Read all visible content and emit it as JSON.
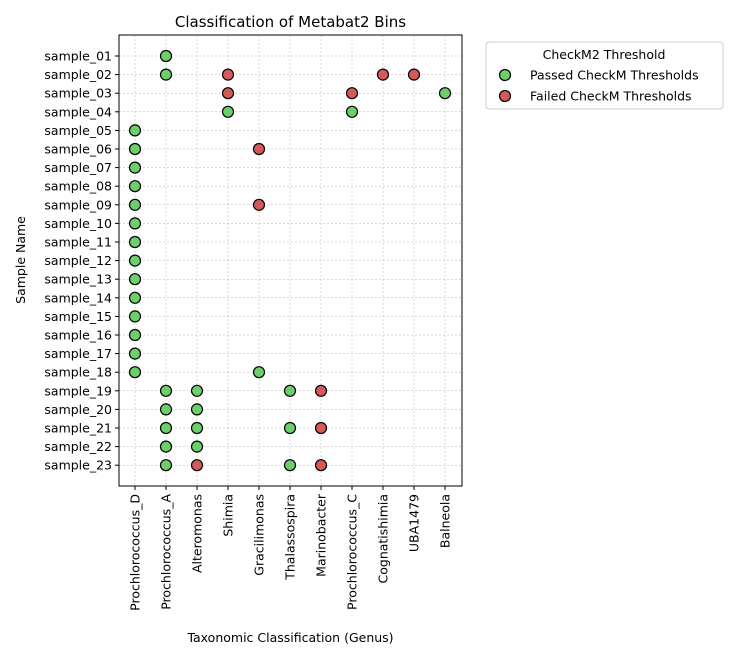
{
  "chart_data": {
    "type": "scatter",
    "title": "Classification of Metabat2 Bins",
    "xlabel": "Taxonomic Classification (Genus)",
    "ylabel": "Sample Name",
    "grid": true,
    "legend_placement": "outside upper right",
    "x_categories": [
      "Prochlorococcus_D",
      "Prochlorococcus_A",
      "Alteromonas",
      "Shimia",
      "Gracilimonas",
      "Thalassospira",
      "Marinobacter",
      "Prochlorococcus_C",
      "Cognatishimia",
      "UBA1479",
      "Balneola"
    ],
    "y_categories": [
      "sample_01",
      "sample_02",
      "sample_03",
      "sample_04",
      "sample_05",
      "sample_06",
      "sample_07",
      "sample_08",
      "sample_09",
      "sample_10",
      "sample_11",
      "sample_12",
      "sample_13",
      "sample_14",
      "sample_15",
      "sample_16",
      "sample_17",
      "sample_18",
      "sample_19",
      "sample_20",
      "sample_21",
      "sample_22",
      "sample_23"
    ],
    "legend": {
      "title": "CheckM2 Threshold",
      "items": [
        {
          "key": "passed",
          "label": "Passed CheckM Thresholds",
          "color": "#6ccf6c"
        },
        {
          "key": "failed",
          "label": "Failed CheckM Thresholds",
          "color": "#d45a5a"
        }
      ]
    },
    "points": [
      {
        "sample": "sample_01",
        "genus": "Prochlorococcus_A",
        "status": "passed"
      },
      {
        "sample": "sample_02",
        "genus": "Prochlorococcus_A",
        "status": "passed"
      },
      {
        "sample": "sample_02",
        "genus": "Shimia",
        "status": "failed"
      },
      {
        "sample": "sample_02",
        "genus": "Cognatishimia",
        "status": "failed"
      },
      {
        "sample": "sample_02",
        "genus": "UBA1479",
        "status": "failed"
      },
      {
        "sample": "sample_03",
        "genus": "Shimia",
        "status": "failed"
      },
      {
        "sample": "sample_03",
        "genus": "Prochlorococcus_C",
        "status": "failed"
      },
      {
        "sample": "sample_03",
        "genus": "Balneola",
        "status": "passed"
      },
      {
        "sample": "sample_04",
        "genus": "Shimia",
        "status": "passed"
      },
      {
        "sample": "sample_04",
        "genus": "Prochlorococcus_C",
        "status": "passed"
      },
      {
        "sample": "sample_05",
        "genus": "Prochlorococcus_D",
        "status": "passed"
      },
      {
        "sample": "sample_06",
        "genus": "Prochlorococcus_D",
        "status": "passed"
      },
      {
        "sample": "sample_06",
        "genus": "Gracilimonas",
        "status": "failed"
      },
      {
        "sample": "sample_07",
        "genus": "Prochlorococcus_D",
        "status": "passed"
      },
      {
        "sample": "sample_08",
        "genus": "Prochlorococcus_D",
        "status": "passed"
      },
      {
        "sample": "sample_09",
        "genus": "Prochlorococcus_D",
        "status": "passed"
      },
      {
        "sample": "sample_09",
        "genus": "Gracilimonas",
        "status": "failed"
      },
      {
        "sample": "sample_10",
        "genus": "Prochlorococcus_D",
        "status": "passed"
      },
      {
        "sample": "sample_11",
        "genus": "Prochlorococcus_D",
        "status": "passed"
      },
      {
        "sample": "sample_12",
        "genus": "Prochlorococcus_D",
        "status": "passed"
      },
      {
        "sample": "sample_13",
        "genus": "Prochlorococcus_D",
        "status": "passed"
      },
      {
        "sample": "sample_14",
        "genus": "Prochlorococcus_D",
        "status": "passed"
      },
      {
        "sample": "sample_15",
        "genus": "Prochlorococcus_D",
        "status": "passed"
      },
      {
        "sample": "sample_16",
        "genus": "Prochlorococcus_D",
        "status": "passed"
      },
      {
        "sample": "sample_17",
        "genus": "Prochlorococcus_D",
        "status": "passed"
      },
      {
        "sample": "sample_18",
        "genus": "Prochlorococcus_D",
        "status": "passed"
      },
      {
        "sample": "sample_18",
        "genus": "Gracilimonas",
        "status": "passed"
      },
      {
        "sample": "sample_19",
        "genus": "Prochlorococcus_A",
        "status": "passed"
      },
      {
        "sample": "sample_19",
        "genus": "Alteromonas",
        "status": "passed"
      },
      {
        "sample": "sample_19",
        "genus": "Thalassospira",
        "status": "passed"
      },
      {
        "sample": "sample_19",
        "genus": "Marinobacter",
        "status": "failed"
      },
      {
        "sample": "sample_20",
        "genus": "Prochlorococcus_A",
        "status": "passed"
      },
      {
        "sample": "sample_20",
        "genus": "Alteromonas",
        "status": "passed"
      },
      {
        "sample": "sample_21",
        "genus": "Prochlorococcus_A",
        "status": "passed"
      },
      {
        "sample": "sample_21",
        "genus": "Alteromonas",
        "status": "passed"
      },
      {
        "sample": "sample_21",
        "genus": "Thalassospira",
        "status": "passed"
      },
      {
        "sample": "sample_21",
        "genus": "Marinobacter",
        "status": "failed"
      },
      {
        "sample": "sample_22",
        "genus": "Prochlorococcus_A",
        "status": "passed"
      },
      {
        "sample": "sample_22",
        "genus": "Alteromonas",
        "status": "passed"
      },
      {
        "sample": "sample_23",
        "genus": "Prochlorococcus_A",
        "status": "passed"
      },
      {
        "sample": "sample_23",
        "genus": "Alteromonas",
        "status": "failed"
      },
      {
        "sample": "sample_23",
        "genus": "Thalassospira",
        "status": "passed"
      },
      {
        "sample": "sample_23",
        "genus": "Marinobacter",
        "status": "failed"
      }
    ]
  }
}
